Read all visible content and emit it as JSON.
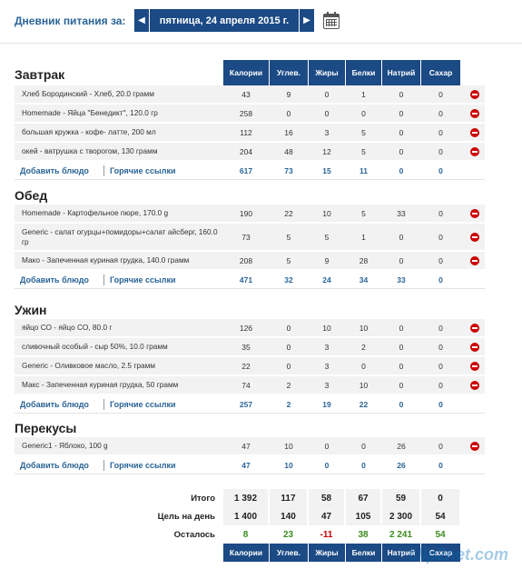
{
  "header": {
    "label": "Дневник питания за:",
    "date": "пятница, 24 апреля 2015 г.",
    "prev": "◀",
    "next": "▶"
  },
  "columns": [
    "Калории",
    "Углев.",
    "Жиры",
    "Белки",
    "Натрий",
    "Сахар"
  ],
  "links": {
    "add": "Добавить блюдо",
    "hot": "Горячие ссылки"
  },
  "meals": [
    {
      "title": "Завтрак",
      "items": [
        {
          "name": "Хлеб Бородинский - Хлеб, 20.0 грамм",
          "v": [
            "43",
            "9",
            "0",
            "1",
            "0",
            "0"
          ]
        },
        {
          "name": "Homemade - Яйца \"Бенедикт\", 120.0 гр",
          "v": [
            "258",
            "0",
            "0",
            "0",
            "0",
            "0"
          ]
        },
        {
          "name": "большая кружка - кофе- латте, 200 мл",
          "v": [
            "112",
            "16",
            "3",
            "5",
            "0",
            "0"
          ]
        },
        {
          "name": "окей - ватрушка с творогом, 130 грамм",
          "v": [
            "204",
            "48",
            "12",
            "5",
            "0",
            "0"
          ]
        }
      ],
      "totals": [
        "617",
        "73",
        "15",
        "11",
        "0",
        "0"
      ]
    },
    {
      "title": "Обед",
      "items": [
        {
          "name": "Homemade - Картофельное пюре, 170.0 g",
          "v": [
            "190",
            "22",
            "10",
            "5",
            "33",
            "0"
          ]
        },
        {
          "name": "Generic - салат огурцы+помидоры+салат айсберг, 160.0 гр",
          "v": [
            "73",
            "5",
            "5",
            "1",
            "0",
            "0"
          ]
        },
        {
          "name": "Мако - Запеченная куриная грудка, 140.0 грамм",
          "v": [
            "208",
            "5",
            "9",
            "28",
            "0",
            "0"
          ]
        }
      ],
      "totals": [
        "471",
        "32",
        "24",
        "34",
        "33",
        "0"
      ]
    },
    {
      "title": "Ужин",
      "items": [
        {
          "name": "яйцо СО - яйцо СО, 80.0 г",
          "v": [
            "126",
            "0",
            "10",
            "10",
            "0",
            "0"
          ]
        },
        {
          "name": "сливочный особый - сыр 50%, 10.0 грамм",
          "v": [
            "35",
            "0",
            "3",
            "2",
            "0",
            "0"
          ]
        },
        {
          "name": "Generic - Оливковое масло, 2.5 грамм",
          "v": [
            "22",
            "0",
            "3",
            "0",
            "0",
            "0"
          ]
        },
        {
          "name": "Макс - Запеченная куриная грудка, 50 грамм",
          "v": [
            "74",
            "2",
            "3",
            "10",
            "0",
            "0"
          ]
        }
      ],
      "totals": [
        "257",
        "2",
        "19",
        "22",
        "0",
        "0"
      ]
    },
    {
      "title": "Перекусы",
      "items": [
        {
          "name": "Generic1 - Яблоко, 100 g",
          "v": [
            "47",
            "10",
            "0",
            "0",
            "26",
            "0"
          ]
        }
      ],
      "totals": [
        "47",
        "10",
        "0",
        "0",
        "26",
        "0"
      ]
    }
  ],
  "summary": {
    "total_label": "Итого",
    "total": [
      "1 392",
      "117",
      "58",
      "67",
      "59",
      "0"
    ],
    "goal_label": "Цель на день",
    "goal": [
      "1 400",
      "140",
      "47",
      "105",
      "2 300",
      "54"
    ],
    "left_label": "Осталось",
    "left": [
      "8",
      "23",
      "-11",
      "38",
      "2 241",
      "54"
    ]
  },
  "colors": {
    "header_bg": "#1b4a85",
    "link": "#2a6496",
    "positive": "#3a8c1e",
    "negative": "#cc0000"
  },
  "watermark": "clip2net.com"
}
